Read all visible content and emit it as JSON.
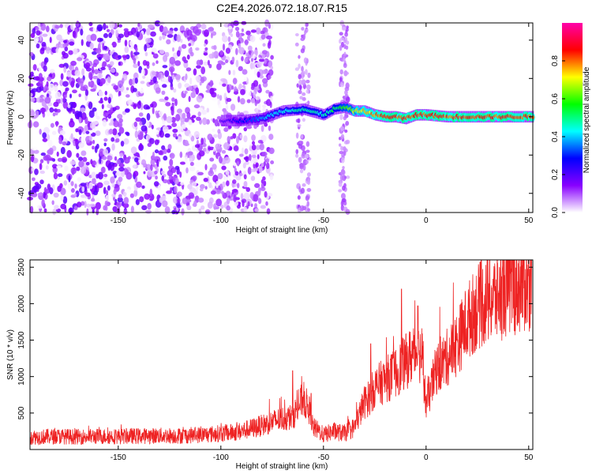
{
  "title": "C2E4.2026.072.18.07.R15",
  "chart_data": [
    {
      "type": "heatmap",
      "name": "spectrogram",
      "xlabel": "Height of straight line (km)",
      "ylabel": "Frequency (Hz)",
      "xlim": [
        -193,
        52
      ],
      "ylim": [
        -50,
        49
      ],
      "xticks": [
        -150,
        -100,
        -50,
        0,
        50
      ],
      "yticks": [
        -40,
        -20,
        0,
        20,
        40
      ],
      "colorbar": {
        "label": "Normalized spectral amplitude",
        "range": [
          0,
          1
        ],
        "ticks": [
          0.0,
          0.2,
          0.4,
          0.6,
          0.8
        ],
        "colors": [
          "#ffffff",
          "#8800ff",
          "#0000ff",
          "#00ffff",
          "#00ff00",
          "#ffff00",
          "#ff0000",
          "#ff00aa"
        ]
      },
      "ridge": {
        "description": "strong carrier line",
        "x": [
          -100,
          -90,
          -80,
          -70,
          -60,
          -50,
          -45,
          -40,
          -35,
          -30,
          -25,
          -20,
          -15,
          -10,
          -5,
          0,
          10,
          20,
          30,
          40,
          52
        ],
        "y": [
          -2,
          -2,
          -1,
          3,
          4,
          1,
          4,
          5,
          3,
          3,
          1,
          0,
          0,
          -1,
          1,
          1,
          0,
          0,
          0,
          0,
          0
        ],
        "amplitude": [
          0.2,
          0.3,
          0.4,
          0.45,
          0.5,
          0.5,
          0.55,
          0.6,
          0.75,
          0.8,
          0.85,
          0.9,
          0.9,
          0.9,
          0.9,
          0.9,
          0.9,
          0.9,
          0.9,
          0.9,
          0.9
        ]
      },
      "noise_region": {
        "x_range": [
          -193,
          -85
        ],
        "amplitude_max": 0.2
      }
    },
    {
      "type": "line",
      "name": "snr",
      "xlabel": "Height of straight line (km)",
      "ylabel": "SNR (10 * v/v)",
      "xlim": [
        -193,
        52
      ],
      "ylim": [
        0,
        2600
      ],
      "xticks": [
        -150,
        -100,
        -50,
        0,
        50
      ],
      "yticks": [
        500,
        1000,
        1500,
        2000,
        2500
      ],
      "color": "#ee2222",
      "series": [
        {
          "name": "SNR",
          "x": [
            -193,
            -180,
            -170,
            -160,
            -150,
            -140,
            -130,
            -120,
            -110,
            -100,
            -95,
            -90,
            -85,
            -80,
            -75,
            -70,
            -65,
            -60,
            -57,
            -55,
            -52,
            -50,
            -45,
            -40,
            -35,
            -30,
            -28,
            -25,
            -20,
            -15,
            -10,
            -5,
            -2,
            0,
            5,
            10,
            15,
            20,
            25,
            30,
            35,
            40,
            45,
            50,
            52
          ],
          "y": [
            170,
            180,
            175,
            180,
            180,
            185,
            190,
            190,
            200,
            220,
            230,
            250,
            290,
            330,
            380,
            420,
            450,
            700,
            550,
            300,
            250,
            200,
            250,
            220,
            300,
            650,
            700,
            850,
            950,
            1050,
            1200,
            1350,
            1300,
            600,
            1100,
            1250,
            1450,
            1750,
            1950,
            2050,
            2100,
            2200,
            2250,
            2300,
            2350
          ],
          "peaks": [
            {
              "x": -65,
              "y": 1080
            },
            {
              "x": -56,
              "y": 770
            },
            {
              "x": -27,
              "y": 1450
            },
            {
              "x": -12,
              "y": 2200
            },
            {
              "x": -4,
              "y": 1970
            },
            {
              "x": 51,
              "y": 2600
            }
          ]
        }
      ]
    }
  ]
}
